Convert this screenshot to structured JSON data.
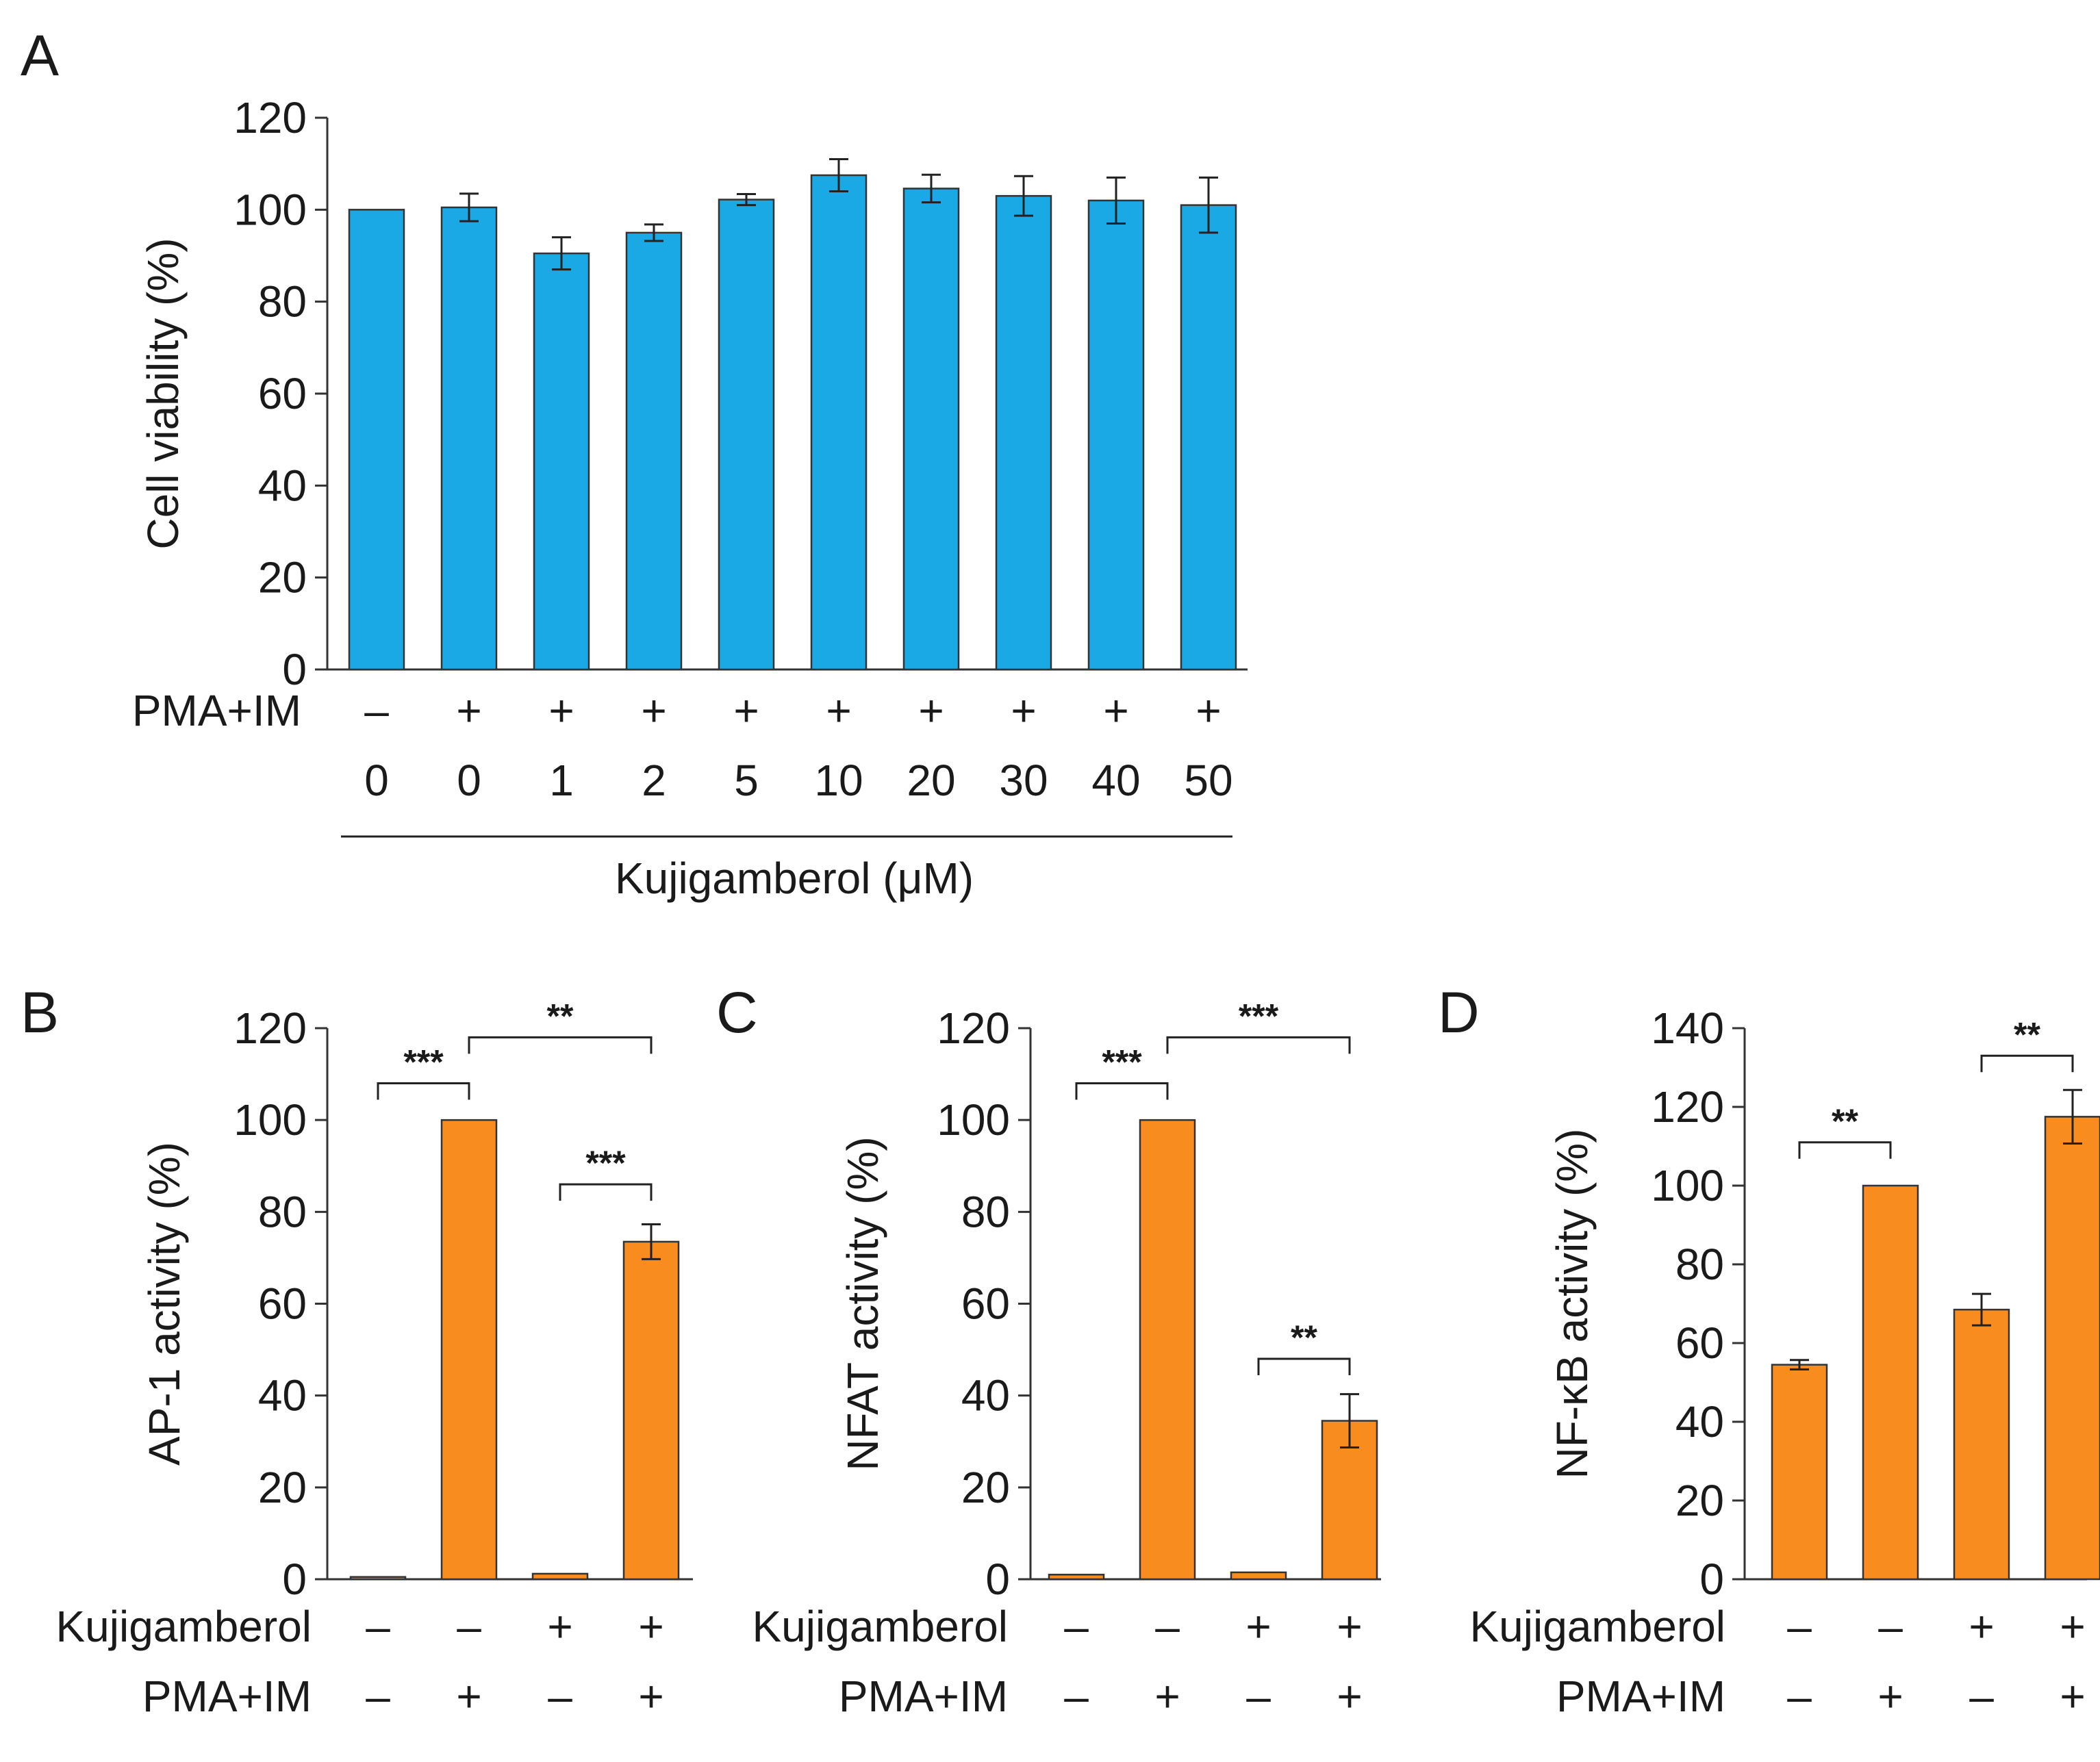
{
  "chart_data": [
    {
      "panel": "A",
      "type": "bar",
      "ylabel": "Cell viability (%)",
      "ylim": [
        0,
        120
      ],
      "yticks": [
        0,
        20,
        40,
        60,
        80,
        100,
        120
      ],
      "bar_color": "#1ba9e6",
      "values": [
        100,
        100.5,
        90.5,
        95,
        102.2,
        107.5,
        104.6,
        103,
        102,
        101
      ],
      "errors": [
        0,
        3,
        3.5,
        1.8,
        1.2,
        3.5,
        3,
        4.3,
        5,
        6
      ],
      "rows": [
        {
          "label": "PMA+IM",
          "values": [
            "–",
            "+",
            "+",
            "+",
            "+",
            "+",
            "+",
            "+",
            "+",
            "+"
          ]
        },
        {
          "label": "",
          "values": [
            "0",
            "0",
            "1",
            "2",
            "5",
            "10",
            "20",
            "30",
            "40",
            "50"
          ]
        }
      ],
      "xlabel": "Kujigamberol (μM)"
    },
    {
      "panel": "B",
      "type": "bar",
      "ylabel": "AP-1 activity (%)",
      "ylim": [
        0,
        120
      ],
      "yticks": [
        0,
        20,
        40,
        60,
        80,
        100,
        120
      ],
      "bar_color": "#f98c1f",
      "values": [
        0.5,
        100,
        1.2,
        73.5
      ],
      "errors": [
        0,
        0,
        0,
        3.8
      ],
      "rows": [
        {
          "label": "Kujigamberol",
          "values": [
            "–",
            "–",
            "+",
            "+"
          ]
        },
        {
          "label": "PMA+IM",
          "values": [
            "–",
            "+",
            "–",
            "+"
          ]
        }
      ],
      "significance": [
        {
          "from": 0,
          "to": 1,
          "level": 108,
          "label": "***"
        },
        {
          "from": 1,
          "to": 3,
          "level": 118,
          "label": "**"
        },
        {
          "from": 2,
          "to": 3,
          "level": 86,
          "label": "***"
        }
      ]
    },
    {
      "panel": "C",
      "type": "bar",
      "ylabel": "NFAT activity (%)",
      "ylim": [
        0,
        120
      ],
      "yticks": [
        0,
        20,
        40,
        60,
        80,
        100,
        120
      ],
      "bar_color": "#f98c1f",
      "values": [
        1,
        100,
        1.5,
        34.5
      ],
      "errors": [
        0,
        0,
        0,
        5.8
      ],
      "rows": [
        {
          "label": "Kujigamberol",
          "values": [
            "–",
            "–",
            "+",
            "+"
          ]
        },
        {
          "label": "PMA+IM",
          "values": [
            "–",
            "+",
            "–",
            "+"
          ]
        }
      ],
      "significance": [
        {
          "from": 0,
          "to": 1,
          "level": 108,
          "label": "***"
        },
        {
          "from": 1,
          "to": 3,
          "level": 118,
          "label": "***"
        },
        {
          "from": 2,
          "to": 3,
          "level": 48,
          "label": "**"
        }
      ]
    },
    {
      "panel": "D",
      "type": "bar",
      "ylabel": "NF-κB activity (%)",
      "ylim": [
        0,
        140
      ],
      "yticks": [
        0,
        20,
        40,
        60,
        80,
        100,
        120,
        140
      ],
      "bar_color": "#f98c1f",
      "values": [
        54.5,
        100,
        68.5,
        117.5
      ],
      "errors": [
        1.2,
        0,
        4,
        6.8
      ],
      "rows": [
        {
          "label": "Kujigamberol",
          "values": [
            "–",
            "–",
            "+",
            "+"
          ]
        },
        {
          "label": "PMA+IM",
          "values": [
            "–",
            "+",
            "–",
            "+"
          ]
        }
      ],
      "significance": [
        {
          "from": 0,
          "to": 1,
          "level": 111,
          "label": "**"
        },
        {
          "from": 2,
          "to": 3,
          "level": 133,
          "label": "**"
        }
      ]
    }
  ]
}
